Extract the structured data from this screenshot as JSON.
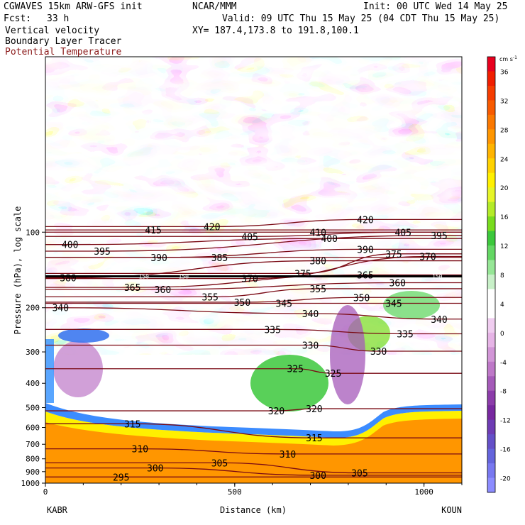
{
  "header": {
    "model": "CGWAVES 15km ARW-GFS init",
    "org": "NCAR/MMM",
    "init": "Init: 00 UTC Wed 14 May 25",
    "fcst_label": "Fcst:",
    "fcst_value": "33 h",
    "valid": "Valid: 09 UTC Thu 15 May 25 (04 CDT Thu 15 May 25)",
    "field1": "Vertical velocity",
    "field2": "Boundary Layer Tracer",
    "field3": "Potential Temperature",
    "xy": "XY= 187.4,173.8 to 191.8,100.1"
  },
  "colors": {
    "theta_contour": "#7a0a14",
    "field3_text": "#8b1a1a",
    "tracer_line": "#000000"
  },
  "chart_data": {
    "type": "heatmap",
    "xlabel": "Distance (km)",
    "ylabel": "Pressure (hPa), log scale",
    "xlim": [
      0,
      1100
    ],
    "ylim": [
      1000,
      20
    ],
    "y_scale": "log",
    "x_ticks": [
      0,
      500,
      1000
    ],
    "y_ticks": [
      100,
      200,
      300,
      400,
      500,
      600,
      700,
      800,
      900,
      1000
    ],
    "endpoints": {
      "left": "KABR",
      "right": "KOUN"
    },
    "colorbar": {
      "units": "cm s",
      "units_exp": "-1",
      "tick_labels": [
        36,
        32,
        28,
        24,
        20,
        16,
        12,
        8,
        4,
        0,
        -4,
        -8,
        -12,
        -16,
        -20
      ],
      "colors": [
        "#e8001e",
        "#f01e00",
        "#f53c00",
        "#f85a00",
        "#fb7800",
        "#ff9600",
        "#ffb400",
        "#ffd200",
        "#fff000",
        "#e6f528",
        "#b4eb28",
        "#78dc1e",
        "#3cc83c",
        "#64d764",
        "#96e696",
        "#c8f0c8",
        "#ffffff",
        "#ffffff",
        "#f0cdf0",
        "#e6b4e6",
        "#d296d7",
        "#be78c8",
        "#a55ab9",
        "#8c3caa",
        "#7828a0",
        "#6e3cb4",
        "#6450c8",
        "#6464dc",
        "#7878f0",
        "#8c8cff"
      ]
    },
    "theta_labels": [
      {
        "text": "415",
        "x": 285,
        "p": 98
      },
      {
        "text": "420",
        "x": 440,
        "p": 95
      },
      {
        "text": "420",
        "x": 845,
        "p": 89
      },
      {
        "text": "410",
        "x": 720,
        "p": 100
      },
      {
        "text": "405",
        "x": 540,
        "p": 104
      },
      {
        "text": "405",
        "x": 945,
        "p": 100
      },
      {
        "text": "395",
        "x": 1040,
        "p": 103
      },
      {
        "text": "400",
        "x": 65,
        "p": 112
      },
      {
        "text": "400",
        "x": 750,
        "p": 106
      },
      {
        "text": "395",
        "x": 150,
        "p": 119
      },
      {
        "text": "390",
        "x": 300,
        "p": 126
      },
      {
        "text": "385",
        "x": 460,
        "p": 126
      },
      {
        "text": "390",
        "x": 845,
        "p": 117
      },
      {
        "text": "375",
        "x": 920,
        "p": 122
      },
      {
        "text": "370",
        "x": 1010,
        "p": 125
      },
      {
        "text": "380",
        "x": 720,
        "p": 130
      },
      {
        "text": "380",
        "x": 60,
        "p": 152
      },
      {
        "text": "370",
        "x": 540,
        "p": 153
      },
      {
        "text": "375",
        "x": 680,
        "p": 146
      },
      {
        "text": "365",
        "x": 845,
        "p": 148
      },
      {
        "text": "360",
        "x": 930,
        "p": 159
      },
      {
        "text": "365",
        "x": 230,
        "p": 166
      },
      {
        "text": "360",
        "x": 310,
        "p": 169
      },
      {
        "text": "355",
        "x": 435,
        "p": 181
      },
      {
        "text": "355",
        "x": 720,
        "p": 168
      },
      {
        "text": "350",
        "x": 520,
        "p": 190
      },
      {
        "text": "350",
        "x": 835,
        "p": 182
      },
      {
        "text": "345",
        "x": 630,
        "p": 192
      },
      {
        "text": "345",
        "x": 920,
        "p": 192
      },
      {
        "text": "340",
        "x": 700,
        "p": 211
      },
      {
        "text": "340",
        "x": 1040,
        "p": 222
      },
      {
        "text": "340",
        "x": 40,
        "p": 200
      },
      {
        "text": "335",
        "x": 600,
        "p": 244
      },
      {
        "text": "335",
        "x": 950,
        "p": 254
      },
      {
        "text": "330",
        "x": 700,
        "p": 282
      },
      {
        "text": "330",
        "x": 880,
        "p": 298
      },
      {
        "text": "325",
        "x": 660,
        "p": 350
      },
      {
        "text": "325",
        "x": 760,
        "p": 365
      },
      {
        "text": "320",
        "x": 610,
        "p": 515
      },
      {
        "text": "320",
        "x": 710,
        "p": 505
      },
      {
        "text": "315",
        "x": 230,
        "p": 580
      },
      {
        "text": "315",
        "x": 710,
        "p": 660
      },
      {
        "text": "310",
        "x": 250,
        "p": 730
      },
      {
        "text": "310",
        "x": 640,
        "p": 765
      },
      {
        "text": "305",
        "x": 460,
        "p": 830
      },
      {
        "text": "305",
        "x": 830,
        "p": 910
      },
      {
        "text": "300",
        "x": 290,
        "p": 870
      },
      {
        "text": "300",
        "x": 720,
        "p": 930
      },
      {
        "text": "295",
        "x": 200,
        "p": 945
      }
    ],
    "tracer_labels": [
      {
        "text": "150",
        "x": 260,
        "p": 150
      },
      {
        "text": "150",
        "x": 365,
        "p": 150
      },
      {
        "text": "150",
        "x": 1035,
        "p": 150
      }
    ]
  }
}
